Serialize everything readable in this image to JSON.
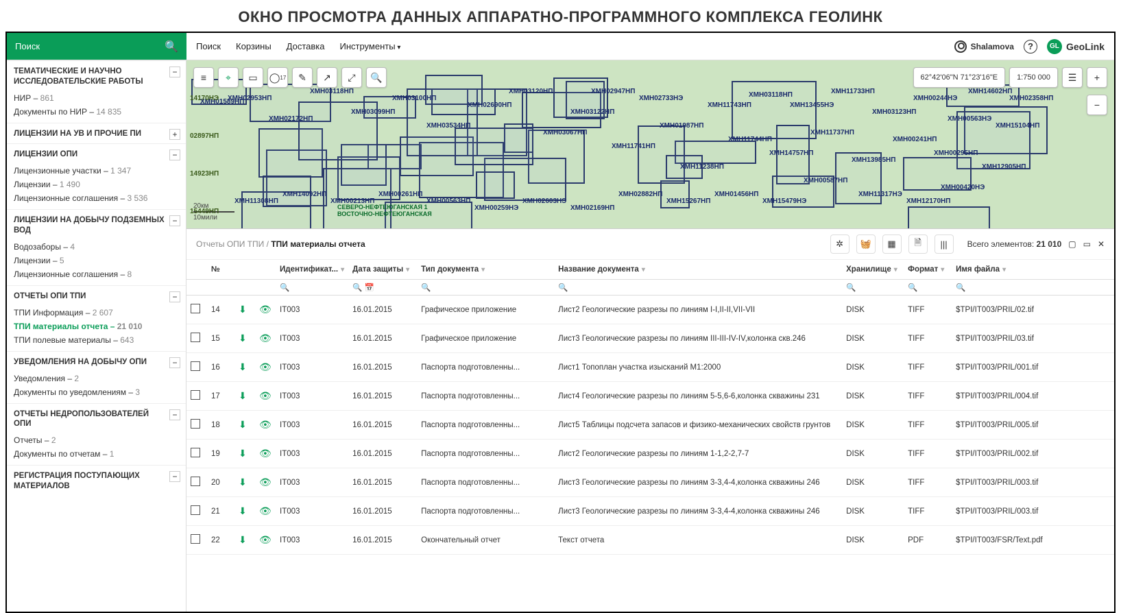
{
  "page_title": "ОКНО ПРОСМОТРА ДАННЫХ АППАРАТНО-ПРОГРАММНОГО КОМПЛЕКСА ГЕОЛИНК",
  "search_label": "Поиск",
  "nav": [
    "Поиск",
    "Корзины",
    "Доставка",
    "Инструменты"
  ],
  "user": "Shalamova",
  "brand": "GeoLink",
  "brand_badge": "GL",
  "map": {
    "coords": "62°42'06\"N  71°23'16\"E",
    "scale": "1:750 000",
    "scalebar_top": "20км",
    "scalebar_bottom": "10мили",
    "special_label": "СЕВЕРО-НЕФТЕЮГАНСКАЯ 1\nВОСТОЧНО-НЕФТЕЮГАНСКАЯ",
    "hz_labels": [
      "14170НЭ",
      "02897НП",
      "14923НП",
      "15449НП"
    ],
    "labels": [
      "ХМН01589НП",
      "ХМН02953НП",
      "ХМН02172НП",
      "ХМН03118НП",
      "ХМН03099НП",
      "ХМН03100НП",
      "ХМН03534НП",
      "ХМН02690НП",
      "ХМН03120НП",
      "ХМН03067НП",
      "ХМН03122НП",
      "ХМН02947НП",
      "ХМН11741НП",
      "ХМН02733НЭ",
      "ХМН01987НП",
      "ХМН11238НП",
      "ХМН11743НП",
      "ХМН11744НП",
      "ХМН03118НП",
      "ХМН14757НП",
      "ХМН13455НЭ",
      "ХМН11737НП",
      "ХМН11733НП",
      "ХМН13985НП",
      "ХМН03123НП",
      "ХМН00241НП",
      "ХМН00244НЭ",
      "ХМН00295НП",
      "ХМН00563НЭ",
      "ХМН14602НП",
      "ХМН12905НП",
      "ХМН15104НП",
      "ХМН02358НП",
      "ХМН00420НЭ",
      "ХМН12170НП",
      "ХМН11317НЭ",
      "ХМН00587НП",
      "ХМН15479НЭ",
      "ХМН01456НП",
      "ХМН15267НП",
      "ХМН02882НП",
      "ХМН02169НП",
      "ХМН02603НЭ",
      "ХМН00259НЭ",
      "ХМН00563НП",
      "ХМН00261НП",
      "ХМН00213НП",
      "ХМН14092НП",
      "ХМН11308НП"
    ]
  },
  "sidebar": [
    {
      "title": "ТЕМАТИЧЕСКИЕ И НАУЧНО ИССЛЕДОВАТЕЛЬСКИЕ РАБОТЫ",
      "toggle": "−",
      "items": [
        {
          "label": "НИР",
          "count": "861"
        },
        {
          "label": "Документы по НИР",
          "count": "14 835"
        }
      ]
    },
    {
      "title": "ЛИЦЕНЗИИ НА УВ И ПРОЧИЕ ПИ",
      "toggle": "+",
      "items": []
    },
    {
      "title": "ЛИЦЕНЗИИ ОПИ",
      "toggle": "−",
      "items": [
        {
          "label": "Лицензионные участки",
          "count": "1 347"
        },
        {
          "label": "Лицензии",
          "count": "1 490"
        },
        {
          "label": "Лицензионные соглашения",
          "count": "3 536"
        }
      ]
    },
    {
      "title": "ЛИЦЕНЗИИ НА ДОБЫЧУ ПОДЗЕМНЫХ ВОД",
      "toggle": "−",
      "items": [
        {
          "label": "Водозаборы",
          "count": "4"
        },
        {
          "label": "Лицензии",
          "count": "5"
        },
        {
          "label": "Лицензионные соглашения",
          "count": "8"
        }
      ]
    },
    {
      "title": "ОТЧЕТЫ ОПИ ТПИ",
      "toggle": "−",
      "items": [
        {
          "label": "ТПИ Информация",
          "count": "2 607"
        },
        {
          "label": "ТПИ материалы отчета",
          "count": "21 010",
          "active": true
        },
        {
          "label": "ТПИ полевые материалы",
          "count": "643"
        }
      ]
    },
    {
      "title": "УВЕДОМЛЕНИЯ НА ДОБЫЧУ ОПИ",
      "toggle": "−",
      "items": [
        {
          "label": "Уведомления",
          "count": "2"
        },
        {
          "label": "Документы по уведомлениям",
          "count": "3"
        }
      ]
    },
    {
      "title": "ОТЧЕТЫ НЕДРОПОЛЬЗОВАТЕЛЕЙ ОПИ",
      "toggle": "−",
      "items": [
        {
          "label": "Отчеты",
          "count": "2"
        },
        {
          "label": "Документы по отчетам",
          "count": "1"
        }
      ]
    },
    {
      "title": "РЕГИСТРАЦИЯ ПОСТУПАЮЩИХ МАТЕРИАЛОВ",
      "toggle": "−",
      "items": []
    }
  ],
  "breadcrumb": {
    "p1": "Отчеты ОПИ ТПИ",
    "p2": "ТПИ материалы отчета"
  },
  "total_label": "Всего элементов:",
  "total_value": "21 010",
  "columns": [
    "№",
    "Идентификат...",
    "Дата защиты",
    "Тип документа",
    "Название документа",
    "Хранилище",
    "Формат",
    "Имя файла"
  ],
  "rows": [
    {
      "no": "14",
      "id": "IT003",
      "date": "16.01.2015",
      "type": "Графическое приложение",
      "name": "Лист2 Геологические разрезы по линиям I-I,II-II,VII-VII",
      "store": "DISK",
      "fmt": "TIFF",
      "file": "$TPI/IT003/PRIL/02.tif"
    },
    {
      "no": "15",
      "id": "IT003",
      "date": "16.01.2015",
      "type": "Графическое приложение",
      "name": "Лист3 Геологические разрезы по линиям III-III-IV-IV,колонка скв.246",
      "store": "DISK",
      "fmt": "TIFF",
      "file": "$TPI/IT003/PRIL/03.tif"
    },
    {
      "no": "16",
      "id": "IT003",
      "date": "16.01.2015",
      "type": "Паспорта подготовленны...",
      "name": "Лист1 Топоплан участка изысканий М1:2000",
      "store": "DISK",
      "fmt": "TIFF",
      "file": "$TPI/IT003/PRIL/001.tif"
    },
    {
      "no": "17",
      "id": "IT003",
      "date": "16.01.2015",
      "type": "Паспорта подготовленны...",
      "name": "Лист4 Геологические разрезы по линиям 5-5,6-6,колонка скважины 231",
      "store": "DISK",
      "fmt": "TIFF",
      "file": "$TPI/IT003/PRIL/004.tif"
    },
    {
      "no": "18",
      "id": "IT003",
      "date": "16.01.2015",
      "type": "Паспорта подготовленны...",
      "name": "Лист5 Таблицы подсчета запасов и физико-механических свойств грунтов",
      "store": "DISK",
      "fmt": "TIFF",
      "file": "$TPI/IT003/PRIL/005.tif"
    },
    {
      "no": "19",
      "id": "IT003",
      "date": "16.01.2015",
      "type": "Паспорта подготовленны...",
      "name": "Лист2 Геологические разрезы по линиям 1-1,2-2,7-7",
      "store": "DISK",
      "fmt": "TIFF",
      "file": "$TPI/IT003/PRIL/002.tif"
    },
    {
      "no": "20",
      "id": "IT003",
      "date": "16.01.2015",
      "type": "Паспорта подготовленны...",
      "name": "Лист3 Геологические разрезы по линиям 3-3,4-4,колонка скважины 246",
      "store": "DISK",
      "fmt": "TIFF",
      "file": "$TPI/IT003/PRIL/003.tif"
    },
    {
      "no": "21",
      "id": "IT003",
      "date": "16.01.2015",
      "type": "Паспорта подготовленны...",
      "name": "Лист3 Геологические разрезы по линиям 3-3,4-4,колонка скважины 246",
      "store": "DISK",
      "fmt": "TIFF",
      "file": "$TPI/IT003/PRIL/003.tif"
    },
    {
      "no": "22",
      "id": "IT003",
      "date": "16.01.2015",
      "type": "Окончательный отчет",
      "name": "Текст отчета",
      "store": "DISK",
      "fmt": "PDF",
      "file": "$TPI/IT003/FSR/Text.pdf"
    }
  ]
}
